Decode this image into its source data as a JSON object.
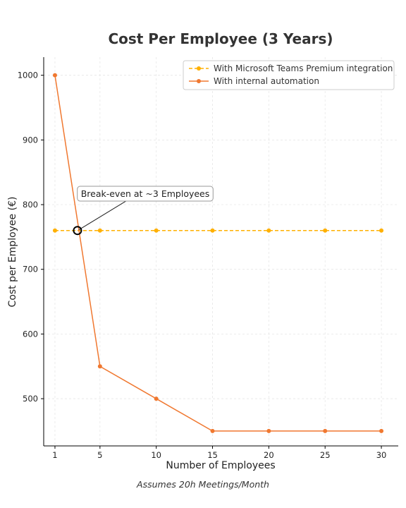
{
  "chart_data": {
    "type": "line",
    "title": "Cost Per Employee (3 Years)",
    "xlabel": "Number of Employees",
    "ylabel": "Cost per Employee (€)",
    "footnote": "Assumes 20h Meetings/Month",
    "x": [
      1,
      5,
      10,
      15,
      20,
      25,
      30
    ],
    "x_ticks": [
      "1",
      "5",
      "10",
      "15",
      "20",
      "25",
      "30"
    ],
    "y_ticks": [
      500,
      600,
      700,
      800,
      900,
      1000
    ],
    "xlim": [
      0.0,
      31.5
    ],
    "ylim": [
      427,
      1028
    ],
    "grid": true,
    "legend_position": "top-right",
    "series": [
      {
        "name": "With Microsoft Teams Premium integration",
        "values": [
          760,
          760,
          760,
          760,
          760,
          760,
          760
        ],
        "color": "#FFB000",
        "style": "dashed"
      },
      {
        "name": "With internal automation",
        "values": [
          1000,
          550,
          500,
          450,
          450,
          450,
          450
        ],
        "color": "#F07830",
        "style": "solid"
      }
    ],
    "annotation": {
      "text": "Break-even at ~3 Employees",
      "x": 3,
      "y": 760,
      "text_x": 3.3,
      "text_y": 812
    }
  }
}
